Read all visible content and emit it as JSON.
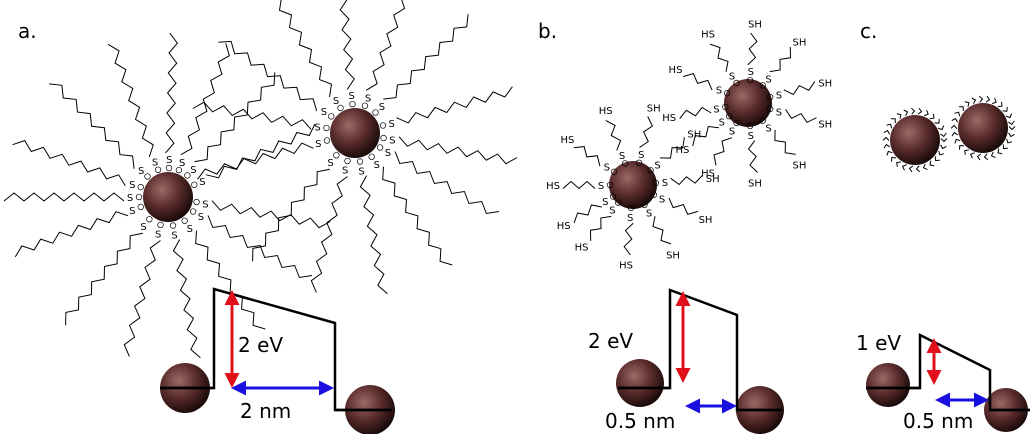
{
  "panels": [
    {
      "label": "a.",
      "ligand_head": "S",
      "barrier": {
        "height": "2 eV",
        "width": "2 nm"
      }
    },
    {
      "label": "b.",
      "ligand_head": "S",
      "ligand_tail_left": "HS",
      "ligand_tail_right": "SH",
      "barrier": {
        "height": "2 eV",
        "width": "0.5 nm"
      }
    },
    {
      "label": "c.",
      "barrier": {
        "height": "1 eV",
        "width": "0.5 nm"
      }
    }
  ]
}
